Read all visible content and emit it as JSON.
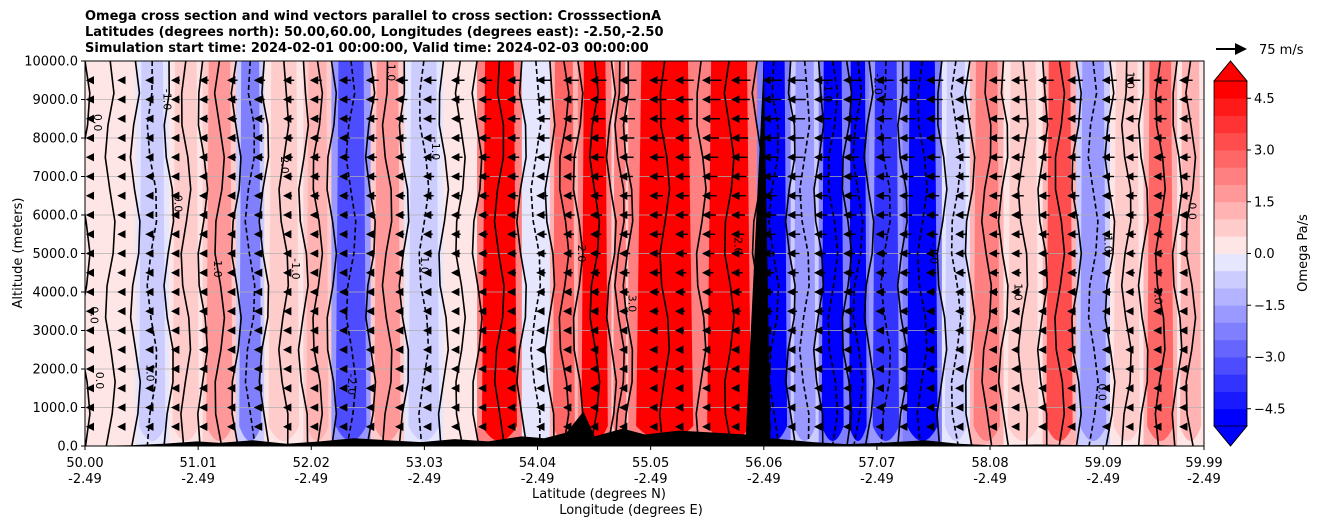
{
  "titles": {
    "line1": "Omega cross section and wind vectors parallel to cross section: CrosssectionA",
    "line2": "Latitudes (degrees north): 50.00,60.00, Longitudes (degrees east): -2.50,-2.50",
    "line3": "Simulation start time: 2024-02-01 00:00:00, Valid time: 2024-02-03 00:00:00"
  },
  "quiver_key": {
    "label": "75 m/s"
  },
  "chart_data": {
    "type": "heatmap",
    "title": "Omega cross section and wind vectors parallel to cross section: CrosssectionA",
    "ylabel": "Altitude (meters)",
    "xlabel_lat": "Latitude (degrees N)",
    "xlabel_lon": "Longitude (degrees E)",
    "ylim": [
      0,
      10000
    ],
    "xlim": [
      50.0,
      59.99
    ],
    "y_ticks": [
      0,
      1000,
      2000,
      3000,
      4000,
      5000,
      6000,
      7000,
      8000,
      9000,
      10000
    ],
    "y_tick_labels": [
      "0.0",
      "1000.0",
      "2000.0",
      "3000.0",
      "4000.0",
      "5000.0",
      "6000.0",
      "7000.0",
      "8000.0",
      "9000.0",
      "10000.0"
    ],
    "x_ticks": [
      {
        "lat": "50.00",
        "lon": "-2.49",
        "pos": 50.0
      },
      {
        "lat": "51.01",
        "lon": "-2.49",
        "pos": 51.01
      },
      {
        "lat": "52.02",
        "lon": "-2.49",
        "pos": 52.02
      },
      {
        "lat": "53.03",
        "lon": "-2.49",
        "pos": 53.03
      },
      {
        "lat": "54.04",
        "lon": "-2.49",
        "pos": 54.04
      },
      {
        "lat": "55.05",
        "lon": "-2.49",
        "pos": 55.05
      },
      {
        "lat": "56.06",
        "lon": "-2.49",
        "pos": 56.06
      },
      {
        "lat": "57.07",
        "lon": "-2.49",
        "pos": 57.07
      },
      {
        "lat": "58.08",
        "lon": "-2.49",
        "pos": 58.08
      },
      {
        "lat": "59.09",
        "lon": "-2.49",
        "pos": 59.09
      },
      {
        "lat": "59.99",
        "lon": "-2.49",
        "pos": 59.99
      }
    ],
    "colorbar": {
      "label": "Omega Pa/s",
      "range": [
        -5.0,
        5.0
      ],
      "ticks": [
        4.5,
        3.0,
        1.5,
        0.0,
        -1.5,
        -3.0,
        -4.5
      ],
      "tick_labels": [
        "4.5",
        "3.0",
        "1.5",
        "0.0",
        "−1.5",
        "−3.0",
        "−4.5"
      ],
      "levels": 20,
      "colors": [
        "#0000ff",
        "#1a1aff",
        "#3333ff",
        "#4d4dff",
        "#6666ff",
        "#8080ff",
        "#9999ff",
        "#b3b3ff",
        "#ccccff",
        "#e6e6ff",
        "#ffe6e6",
        "#ffcccc",
        "#ffb3b3",
        "#ff9999",
        "#ff8080",
        "#ff6666",
        "#ff4d4d",
        "#ff3333",
        "#ff1a1a",
        "#ff0000"
      ]
    },
    "bands": [
      {
        "x0": 50.0,
        "x1": 50.45,
        "omega": 0.4
      },
      {
        "x0": 50.45,
        "x1": 50.75,
        "omega": -0.6
      },
      {
        "x0": 50.75,
        "x1": 51.05,
        "omega": 0.9
      },
      {
        "x0": 51.05,
        "x1": 51.35,
        "omega": 1.8
      },
      {
        "x0": 51.35,
        "x1": 51.6,
        "omega": -2.2
      },
      {
        "x0": 51.6,
        "x1": 51.95,
        "omega": 0.6
      },
      {
        "x0": 51.95,
        "x1": 52.2,
        "omega": 1.4
      },
      {
        "x0": 52.2,
        "x1": 52.55,
        "omega": -3.4
      },
      {
        "x0": 52.55,
        "x1": 52.85,
        "omega": 1.6
      },
      {
        "x0": 52.85,
        "x1": 53.2,
        "omega": -0.8
      },
      {
        "x0": 53.2,
        "x1": 53.5,
        "omega": 0.3
      },
      {
        "x0": 53.5,
        "x1": 53.9,
        "omega": 4.6
      },
      {
        "x0": 53.9,
        "x1": 54.15,
        "omega": -0.4
      },
      {
        "x0": 54.15,
        "x1": 54.4,
        "omega": 2.6
      },
      {
        "x0": 54.4,
        "x1": 54.7,
        "omega": 5.0
      },
      {
        "x0": 54.7,
        "x1": 54.85,
        "omega": 2.0
      },
      {
        "x0": 54.85,
        "x1": 55.5,
        "omega": 5.0
      },
      {
        "x0": 55.5,
        "x1": 56.0,
        "omega": 4.8
      },
      {
        "x0": 56.0,
        "x1": 56.3,
        "omega": -5.0
      },
      {
        "x0": 56.3,
        "x1": 56.55,
        "omega": -1.6
      },
      {
        "x0": 56.55,
        "x1": 56.8,
        "omega": -4.6
      },
      {
        "x0": 56.8,
        "x1": 57.0,
        "omega": -5.0
      },
      {
        "x0": 57.0,
        "x1": 57.3,
        "omega": -3.8
      },
      {
        "x0": 57.3,
        "x1": 57.65,
        "omega": -5.0
      },
      {
        "x0": 57.65,
        "x1": 57.9,
        "omega": -0.6
      },
      {
        "x0": 57.9,
        "x1": 58.2,
        "omega": 2.4
      },
      {
        "x0": 58.2,
        "x1": 58.55,
        "omega": 0.7
      },
      {
        "x0": 58.55,
        "x1": 58.85,
        "omega": 3.2
      },
      {
        "x0": 58.85,
        "x1": 59.15,
        "omega": -1.8
      },
      {
        "x0": 59.15,
        "x1": 59.45,
        "omega": 0.6
      },
      {
        "x0": 59.45,
        "x1": 59.75,
        "omega": 2.6
      },
      {
        "x0": 59.75,
        "x1": 59.99,
        "omega": 1.0
      }
    ],
    "contour_labels": [
      {
        "text": "0.0",
        "x": 50.08,
        "y": 8400
      },
      {
        "text": "0.0",
        "x": 50.05,
        "y": 3400
      },
      {
        "text": "0.0",
        "x": 50.1,
        "y": 1700
      },
      {
        "text": "1.0",
        "x": 50.55,
        "y": 1900
      },
      {
        "text": "-1.0",
        "x": 50.7,
        "y": 9000
      },
      {
        "text": "0.0",
        "x": 50.8,
        "y": 6300
      },
      {
        "text": "1.0",
        "x": 51.15,
        "y": 4600
      },
      {
        "text": "-1.0",
        "x": 51.85,
        "y": 4600
      },
      {
        "text": "2.0",
        "x": 51.75,
        "y": 7300
      },
      {
        "text": "1.0",
        "x": 52.7,
        "y": 9700
      },
      {
        "text": "-1.0",
        "x": 53.1,
        "y": 7700
      },
      {
        "text": "1.0",
        "x": 53.0,
        "y": 4700
      },
      {
        "text": "-2.0",
        "x": 52.35,
        "y": 1600
      },
      {
        "text": "2.0",
        "x": 54.4,
        "y": 5000
      },
      {
        "text": "3.0",
        "x": 54.85,
        "y": 3700
      },
      {
        "text": "2.0",
        "x": 55.8,
        "y": 5200
      },
      {
        "text": "-1.0",
        "x": 56.6,
        "y": 9200
      },
      {
        "text": "-2.0",
        "x": 57.05,
        "y": 9400
      },
      {
        "text": "-1.0",
        "x": 57.55,
        "y": 5000
      },
      {
        "text": "1.0",
        "x": 58.3,
        "y": 4000
      },
      {
        "text": "1.0",
        "x": 59.3,
        "y": 9500
      },
      {
        "text": "0.0",
        "x": 59.85,
        "y": 6100
      },
      {
        "text": "2.0",
        "x": 59.55,
        "y": 3900
      },
      {
        "text": "0.0",
        "x": 59.05,
        "y": 1400
      },
      {
        "text": "-1.0",
        "x": 59.1,
        "y": 5300
      }
    ],
    "vector_columns": [
      {
        "x": 50.02,
        "strength": 0.15
      },
      {
        "x": 50.3,
        "strength": 0.2
      },
      {
        "x": 50.55,
        "strength": 0.25
      },
      {
        "x": 50.78,
        "strength": 0.3
      },
      {
        "x": 51.03,
        "strength": 0.35
      },
      {
        "x": 51.28,
        "strength": 0.4
      },
      {
        "x": 51.52,
        "strength": 0.45
      },
      {
        "x": 51.78,
        "strength": 0.45
      },
      {
        "x": 52.02,
        "strength": 0.5
      },
      {
        "x": 52.28,
        "strength": 0.5
      },
      {
        "x": 52.52,
        "strength": 0.55
      },
      {
        "x": 52.78,
        "strength": 0.55
      },
      {
        "x": 53.03,
        "strength": 0.6
      },
      {
        "x": 53.28,
        "strength": 0.6
      },
      {
        "x": 53.52,
        "strength": 0.65
      },
      {
        "x": 53.78,
        "strength": 0.65
      },
      {
        "x": 54.04,
        "strength": 0.7
      },
      {
        "x": 54.28,
        "strength": 0.75
      },
      {
        "x": 54.52,
        "strength": 0.8
      },
      {
        "x": 54.78,
        "strength": 0.85
      },
      {
        "x": 55.05,
        "strength": 0.9
      },
      {
        "x": 55.28,
        "strength": 0.95
      },
      {
        "x": 55.52,
        "strength": 1.0
      },
      {
        "x": 55.78,
        "strength": 1.0
      },
      {
        "x": 56.06,
        "strength": 1.0
      },
      {
        "x": 56.28,
        "strength": 1.0
      },
      {
        "x": 56.52,
        "strength": 0.95
      },
      {
        "x": 56.78,
        "strength": 0.95
      },
      {
        "x": 57.07,
        "strength": 0.9
      },
      {
        "x": 57.28,
        "strength": 0.9
      },
      {
        "x": 57.52,
        "strength": 0.85
      },
      {
        "x": 57.78,
        "strength": 0.85
      },
      {
        "x": 58.08,
        "strength": 0.8
      },
      {
        "x": 58.28,
        "strength": 0.8
      },
      {
        "x": 58.52,
        "strength": 0.75
      },
      {
        "x": 58.78,
        "strength": 0.75
      },
      {
        "x": 59.09,
        "strength": 0.7
      },
      {
        "x": 59.3,
        "strength": 0.7
      },
      {
        "x": 59.55,
        "strength": 0.65
      },
      {
        "x": 59.78,
        "strength": 0.6
      }
    ],
    "terrain": [
      {
        "x": 50.0,
        "h": 0
      },
      {
        "x": 50.4,
        "h": 20
      },
      {
        "x": 50.7,
        "h": 60
      },
      {
        "x": 51.0,
        "h": 120
      },
      {
        "x": 51.2,
        "h": 80
      },
      {
        "x": 51.5,
        "h": 150
      },
      {
        "x": 51.8,
        "h": 60
      },
      {
        "x": 52.1,
        "h": 120
      },
      {
        "x": 52.4,
        "h": 200
      },
      {
        "x": 52.7,
        "h": 150
      },
      {
        "x": 53.0,
        "h": 100
      },
      {
        "x": 53.3,
        "h": 180
      },
      {
        "x": 53.6,
        "h": 120
      },
      {
        "x": 53.9,
        "h": 250
      },
      {
        "x": 54.1,
        "h": 200
      },
      {
        "x": 54.3,
        "h": 350
      },
      {
        "x": 54.45,
        "h": 900
      },
      {
        "x": 54.55,
        "h": 250
      },
      {
        "x": 54.8,
        "h": 450
      },
      {
        "x": 55.0,
        "h": 300
      },
      {
        "x": 55.3,
        "h": 400
      },
      {
        "x": 55.6,
        "h": 350
      },
      {
        "x": 55.9,
        "h": 300
      },
      {
        "x": 56.06,
        "h": 10000
      },
      {
        "x": 56.12,
        "h": 200
      },
      {
        "x": 56.5,
        "h": 100
      },
      {
        "x": 56.8,
        "h": 50
      },
      {
        "x": 57.1,
        "h": 80
      },
      {
        "x": 57.5,
        "h": 150
      },
      {
        "x": 57.8,
        "h": 60
      },
      {
        "x": 58.1,
        "h": 20
      },
      {
        "x": 58.5,
        "h": 40
      },
      {
        "x": 59.0,
        "h": 20
      },
      {
        "x": 59.5,
        "h": 30
      },
      {
        "x": 59.99,
        "h": 0
      }
    ]
  }
}
